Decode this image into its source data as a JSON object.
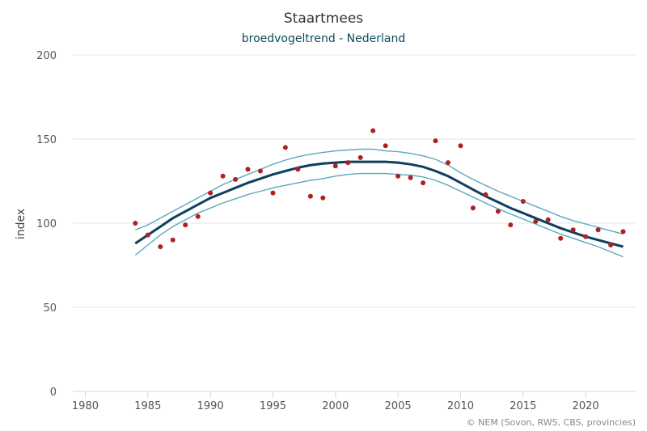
{
  "chart_data": {
    "type": "line",
    "title": "Staartmees",
    "subtitle": "broedvogeltrend - Nederland",
    "ylabel": "index",
    "xlabel": "",
    "xlim": [
      1979,
      2024
    ],
    "ylim": [
      0,
      200
    ],
    "x_ticks": [
      "1980",
      "1985",
      "1990",
      "1995",
      "2000",
      "2005",
      "2010",
      "2015",
      "2020"
    ],
    "y_ticks": [
      "0",
      "50",
      "100",
      "150",
      "200"
    ],
    "grid": "horizontal",
    "credit": "© NEM (Sovon, RWS, CBS, provincies)",
    "colors": {
      "trend": "#0d3f5e",
      "confidence": "#5aa8c0",
      "points": "#b02020",
      "grid": "#e6e6e6",
      "axis": "#ccd6eb"
    },
    "series": [
      {
        "role": "trend",
        "x": [
          1984,
          1985,
          1986,
          1987,
          1988,
          1989,
          1990,
          1991,
          1992,
          1993,
          1994,
          1995,
          1996,
          1997,
          1998,
          1999,
          2000,
          2001,
          2002,
          2003,
          2004,
          2005,
          2006,
          2007,
          2008,
          2009,
          2010,
          2011,
          2012,
          2013,
          2014,
          2015,
          2016,
          2017,
          2018,
          2019,
          2020,
          2021,
          2022,
          2023
        ],
        "values": [
          88,
          93,
          98,
          103,
          107,
          111,
          115,
          118,
          121,
          124,
          126.5,
          129,
          131,
          133,
          134.5,
          135.5,
          136,
          136.5,
          136.5,
          136.5,
          136.5,
          136,
          135,
          133.5,
          131,
          128,
          124,
          120,
          116,
          112.5,
          109,
          106,
          103,
          100,
          97,
          94.5,
          92,
          90,
          88,
          86
        ]
      },
      {
        "role": "upper-bound",
        "x": [
          1984,
          1985,
          1986,
          1987,
          1988,
          1989,
          1990,
          1991,
          1992,
          1993,
          1994,
          1995,
          1996,
          1997,
          1998,
          1999,
          2000,
          2001,
          2002,
          2003,
          2004,
          2005,
          2006,
          2007,
          2008,
          2009,
          2010,
          2011,
          2012,
          2013,
          2014,
          2015,
          2016,
          2017,
          2018,
          2019,
          2020,
          2021,
          2022,
          2023
        ],
        "values": [
          96,
          99,
          103,
          107,
          111,
          115,
          119,
          123,
          126,
          129,
          132,
          135,
          137.5,
          139.5,
          141,
          142,
          143,
          143.5,
          144,
          144,
          143,
          142.5,
          141.5,
          140,
          138,
          134.5,
          130,
          126,
          122.5,
          119,
          116,
          113,
          110,
          107,
          104,
          101.5,
          99.5,
          97.5,
          95.5,
          93.5
        ]
      },
      {
        "role": "lower-bound",
        "x": [
          1984,
          1985,
          1986,
          1987,
          1988,
          1989,
          1990,
          1991,
          1992,
          1993,
          1994,
          1995,
          1996,
          1997,
          1998,
          1999,
          2000,
          2001,
          2002,
          2003,
          2004,
          2005,
          2006,
          2007,
          2008,
          2009,
          2010,
          2011,
          2012,
          2013,
          2014,
          2015,
          2016,
          2017,
          2018,
          2019,
          2020,
          2021,
          2022,
          2023
        ],
        "values": [
          81,
          87,
          93,
          98,
          102,
          106,
          109,
          112,
          114.5,
          117,
          119,
          121,
          122.5,
          124,
          125.5,
          126.5,
          128,
          129,
          129.5,
          129.5,
          129.5,
          129,
          128.5,
          127.5,
          125.5,
          122.5,
          119,
          115.5,
          112,
          108.5,
          105.5,
          102.5,
          99.5,
          96.5,
          93.5,
          91,
          88.5,
          86,
          83,
          80
        ]
      },
      {
        "role": "observed",
        "x": [
          1984,
          1985,
          1986,
          1987,
          1988,
          1989,
          1990,
          1991,
          1992,
          1993,
          1994,
          1995,
          1996,
          1997,
          1998,
          1999,
          2000,
          2001,
          2002,
          2003,
          2004,
          2005,
          2006,
          2007,
          2008,
          2009,
          2010,
          2011,
          2012,
          2013,
          2014,
          2015,
          2016,
          2017,
          2018,
          2019,
          2020,
          2021,
          2022,
          2023
        ],
        "values": [
          100,
          93,
          86,
          90,
          99,
          104,
          118,
          128,
          126,
          132,
          131,
          118,
          145,
          132,
          116,
          115,
          134,
          136,
          139,
          155,
          146,
          128,
          127,
          124,
          149,
          136,
          146,
          109,
          117,
          107,
          99,
          113,
          101,
          102,
          91,
          96,
          92,
          96,
          87,
          95
        ]
      }
    ]
  }
}
